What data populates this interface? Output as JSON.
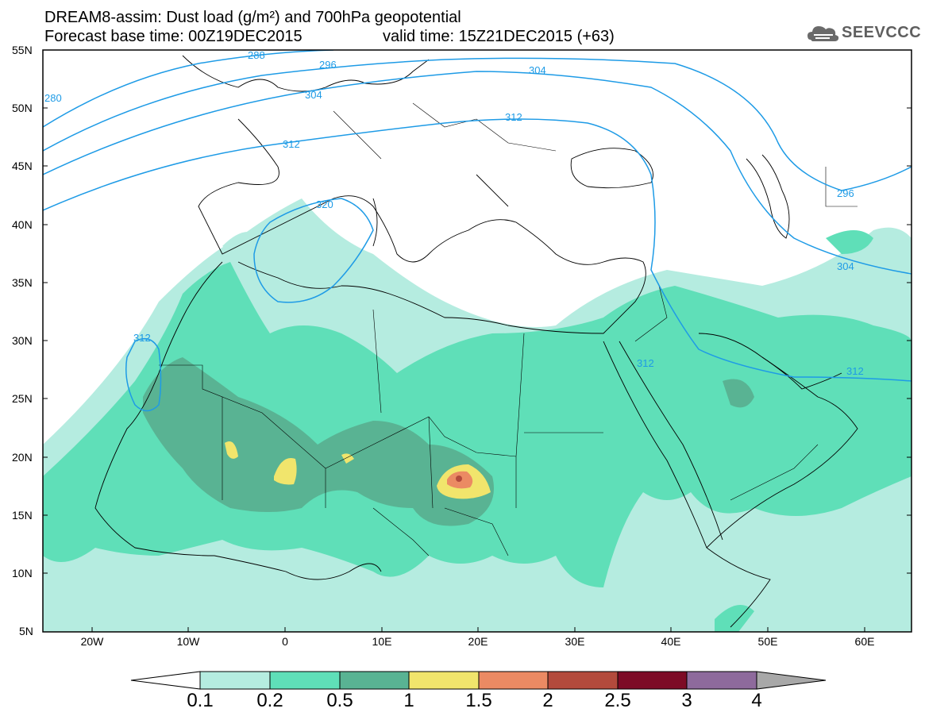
{
  "header": {
    "title_line1": "DREAM8-assim: Dust load (g/m²) and 700hPa geopotential",
    "base_time": "Forecast base time: 00Z19DEC2015",
    "valid_time": "valid time: 15Z21DEC2015 (+63)",
    "logo_text": "SEEVCCC"
  },
  "axes": {
    "lat_labels": [
      "55N",
      "50N",
      "45N",
      "40N",
      "35N",
      "30N",
      "25N",
      "20N",
      "15N",
      "10N",
      "5N"
    ],
    "lon_labels": [
      "20W",
      "10W",
      "0",
      "10E",
      "20E",
      "30E",
      "40E",
      "50E",
      "60E"
    ]
  },
  "isolines": {
    "labels": [
      "288",
      "296",
      "304",
      "312",
      "320",
      "296",
      "304",
      "312",
      "312",
      "312",
      "280",
      "304",
      "312"
    ],
    "color": "#1e9be6"
  },
  "colorbar": {
    "levels": [
      "0.1",
      "0.2",
      "0.5",
      "1",
      "1.5",
      "2",
      "2.5",
      "3",
      "4"
    ],
    "colors": [
      "#b5ece0",
      "#5fdfb8",
      "#59b393",
      "#f1e56c",
      "#eb8a63",
      "#b34a3c",
      "#7d0b26",
      "#8e6a9c"
    ],
    "left_triangle_color": "#ffffff",
    "right_triangle_color": "#a8a8a8"
  },
  "map_colors": {
    "ocean": "#ffffff",
    "coast": "#000000"
  }
}
